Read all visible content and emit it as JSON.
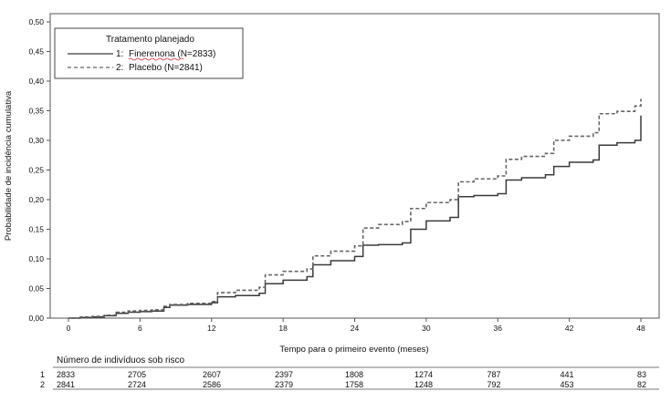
{
  "chart_data": {
    "type": "line",
    "title": "",
    "xlabel": "Tempo para o primeiro evento (meses)",
    "ylabel": "Probabilidade de incidência cumulativa",
    "xlim": [
      0,
      48
    ],
    "ylim": [
      0,
      0.5
    ],
    "xticks": [
      0,
      6,
      12,
      18,
      24,
      30,
      36,
      42,
      48
    ],
    "xtick_labels": [
      "0",
      "6",
      "12",
      "18",
      "24",
      "30",
      "36",
      "42",
      "48"
    ],
    "yticks": [
      0,
      0.05,
      0.1,
      0.15,
      0.2,
      0.25,
      0.3,
      0.35,
      0.4,
      0.45,
      0.5
    ],
    "ytick_labels": [
      "0,00",
      "0,05",
      "0,10",
      "0,15",
      "0,20",
      "0,25",
      "0,30",
      "0,35",
      "0,40",
      "0,45",
      "0,50"
    ],
    "legend": {
      "title": "Tratamento planejado",
      "position": "top-left",
      "entries": [
        {
          "prefix": "1:",
          "label": "Finerenona (N=2833)",
          "style": "solid"
        },
        {
          "prefix": "2:",
          "label": "Placebo (N=2841)",
          "style": "dashed"
        }
      ]
    },
    "series": [
      {
        "name": "Finerenona (N=2833)",
        "style": "solid",
        "color": "#3a3a3a",
        "points": [
          [
            1,
            0.001
          ],
          [
            2,
            0.002
          ],
          [
            3,
            0.004
          ],
          [
            4,
            0.008
          ],
          [
            5,
            0.01
          ],
          [
            6,
            0.011
          ],
          [
            7,
            0.012
          ],
          [
            8,
            0.018
          ],
          [
            8.5,
            0.022
          ],
          [
            10,
            0.023
          ],
          [
            12,
            0.026
          ],
          [
            12.5,
            0.036
          ],
          [
            14,
            0.038
          ],
          [
            16,
            0.042
          ],
          [
            16.5,
            0.058
          ],
          [
            18,
            0.064
          ],
          [
            20,
            0.07
          ],
          [
            20.5,
            0.09
          ],
          [
            22,
            0.097
          ],
          [
            24,
            0.104
          ],
          [
            24.7,
            0.123
          ],
          [
            26,
            0.124
          ],
          [
            28,
            0.127
          ],
          [
            28.7,
            0.15
          ],
          [
            30,
            0.164
          ],
          [
            32,
            0.17
          ],
          [
            32.7,
            0.205
          ],
          [
            34,
            0.207
          ],
          [
            36,
            0.21
          ],
          [
            36.7,
            0.233
          ],
          [
            38,
            0.237
          ],
          [
            40,
            0.242
          ],
          [
            40.7,
            0.256
          ],
          [
            42,
            0.263
          ],
          [
            44,
            0.267
          ],
          [
            44.5,
            0.292
          ],
          [
            46,
            0.296
          ],
          [
            47.5,
            0.3
          ],
          [
            48,
            0.342
          ]
        ]
      },
      {
        "name": "Placebo (N=2841)",
        "style": "dashed",
        "color": "#666666",
        "points": [
          [
            1,
            0.002
          ],
          [
            2,
            0.003
          ],
          [
            3,
            0.005
          ],
          [
            4,
            0.01
          ],
          [
            5,
            0.012
          ],
          [
            6,
            0.013
          ],
          [
            7,
            0.014
          ],
          [
            8,
            0.02
          ],
          [
            8.5,
            0.023
          ],
          [
            10,
            0.025
          ],
          [
            12,
            0.028
          ],
          [
            12.5,
            0.043
          ],
          [
            14,
            0.047
          ],
          [
            16,
            0.052
          ],
          [
            16.5,
            0.073
          ],
          [
            18,
            0.079
          ],
          [
            20,
            0.083
          ],
          [
            20.5,
            0.105
          ],
          [
            22,
            0.113
          ],
          [
            24,
            0.122
          ],
          [
            24.7,
            0.152
          ],
          [
            26,
            0.158
          ],
          [
            28,
            0.163
          ],
          [
            28.7,
            0.185
          ],
          [
            30,
            0.195
          ],
          [
            32,
            0.2
          ],
          [
            32.7,
            0.23
          ],
          [
            34,
            0.235
          ],
          [
            36,
            0.24
          ],
          [
            36.7,
            0.268
          ],
          [
            38,
            0.273
          ],
          [
            40,
            0.278
          ],
          [
            40.7,
            0.3
          ],
          [
            42,
            0.307
          ],
          [
            44,
            0.313
          ],
          [
            44.5,
            0.345
          ],
          [
            46,
            0.349
          ],
          [
            47.5,
            0.358
          ],
          [
            48,
            0.37
          ]
        ]
      }
    ],
    "risk_table": {
      "title": "Número de indivíduos sob risco",
      "times": [
        0,
        6,
        12,
        18,
        24,
        30,
        36,
        42,
        48
      ],
      "rows": [
        {
          "label": "1",
          "values": [
            "2833",
            "2705",
            "2607",
            "2397",
            "1808",
            "1274",
            "787",
            "441",
            "83"
          ]
        },
        {
          "label": "2",
          "values": [
            "2841",
            "2724",
            "2586",
            "2379",
            "1758",
            "1248",
            "792",
            "453",
            "82"
          ]
        }
      ]
    }
  }
}
